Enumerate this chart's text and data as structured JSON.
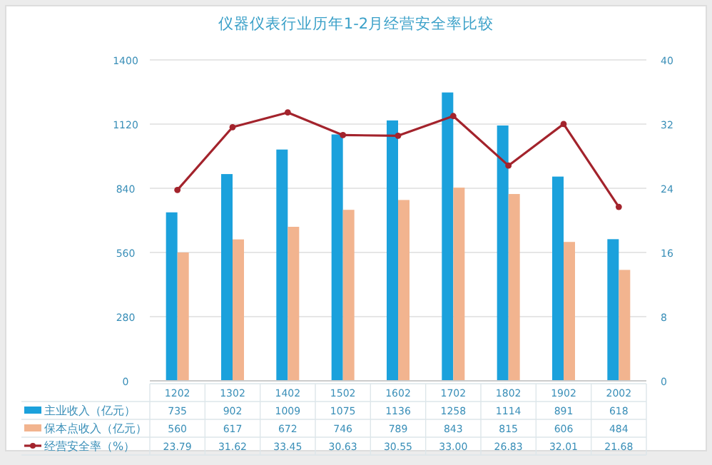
{
  "chart_data": {
    "type": "bar",
    "title": "仪器仪表行业历年1-2月经营安全率比较",
    "categories": [
      "1202",
      "1302",
      "1402",
      "1502",
      "1602",
      "1702",
      "1802",
      "1902",
      "2002"
    ],
    "series": [
      {
        "name": "主业收入（亿元）",
        "color": "#1ba1dc",
        "values": [
          735,
          902,
          1009,
          1075,
          1136,
          1258,
          1114,
          891,
          618
        ],
        "value_labels": [
          "735",
          "902",
          "1009",
          "1075",
          "1136",
          "1258",
          "1114",
          "891",
          "618"
        ]
      },
      {
        "name": "保本点收入（亿元）",
        "color": "#f2b48f",
        "values": [
          560,
          617,
          672,
          746,
          789,
          843,
          815,
          606,
          484
        ],
        "value_labels": [
          "560",
          "617",
          "672",
          "746",
          "789",
          "843",
          "815",
          "606",
          "484"
        ]
      },
      {
        "name": "经营安全率（%）",
        "type": "line",
        "axis": "y2",
        "color": "#a3232c",
        "marker": "circle",
        "values": [
          23.79,
          31.62,
          33.45,
          30.63,
          30.55,
          33.0,
          26.83,
          32.01,
          21.68
        ],
        "value_labels": [
          "23.79",
          "31.62",
          "33.45",
          "30.63",
          "30.55",
          "33.00",
          "26.83",
          "32.01",
          "21.68"
        ]
      }
    ],
    "ylim": [
      0,
      1400
    ],
    "yticks": [
      0,
      280,
      560,
      840,
      1120,
      1400
    ],
    "y2lim": [
      0,
      40
    ],
    "y2ticks": [
      0,
      8,
      16,
      24,
      32,
      40
    ],
    "grid": "y",
    "legend": "bottom"
  }
}
